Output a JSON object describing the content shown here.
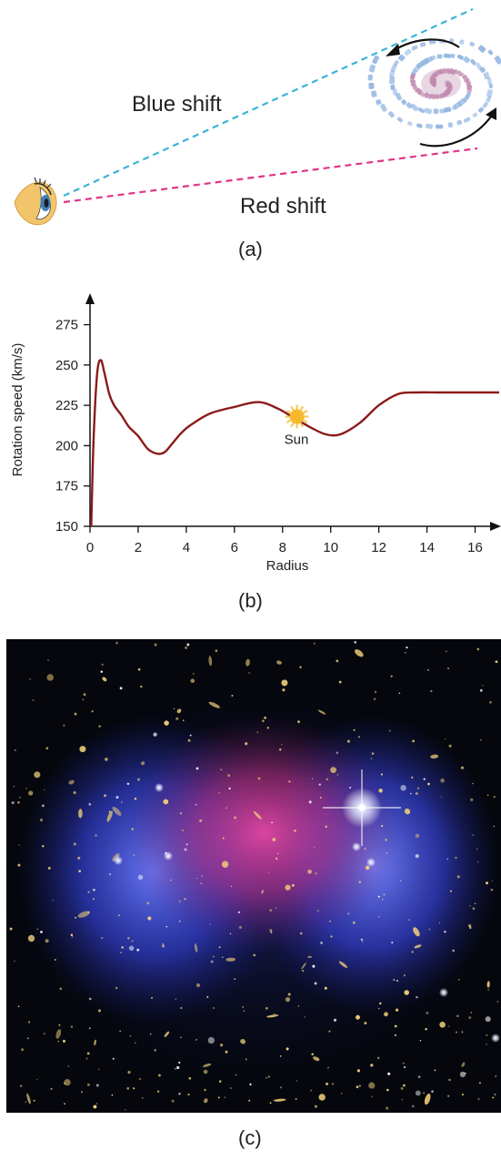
{
  "panel_a": {
    "blue_shift_label": "Blue shift",
    "red_shift_label": "Red shift",
    "caption": "(a)",
    "colors": {
      "blue_line": "#3ab4d6",
      "red_line": "#e0338a",
      "galaxy": "#8fb3e0",
      "galaxy_core": "#c08ab0"
    }
  },
  "panel_b": {
    "caption": "(b)",
    "sun_label": "Sun",
    "colors": {
      "curve": "#8b1a1a",
      "sun": "#f5b82a"
    }
  },
  "panel_c": {
    "caption": "(c)",
    "colors": {
      "background": "#05070d",
      "blue_glow": "#3a4bff",
      "pink_glow": "#e03a9a",
      "stars": "#f2d27a"
    }
  },
  "chart_data": {
    "type": "line",
    "xlabel": "Radius",
    "ylabel": "Rotation speed (km/s)",
    "xlim": [
      0,
      17
    ],
    "ylim": [
      150,
      290
    ],
    "xticks": [
      0,
      2,
      4,
      6,
      8,
      10,
      12,
      14,
      16
    ],
    "yticks": [
      150,
      175,
      200,
      225,
      250,
      275
    ],
    "grid": false,
    "x": [
      0.05,
      0.15,
      0.3,
      0.45,
      0.6,
      0.8,
      1.0,
      1.3,
      1.6,
      2.0,
      2.4,
      2.8,
      3.1,
      3.4,
      3.8,
      4.2,
      5.0,
      6.0,
      7.0,
      7.8,
      8.5,
      9.2,
      9.8,
      10.4,
      11.2,
      12.0,
      12.8,
      13.5,
      14.5,
      15.5,
      16.5,
      17.0
    ],
    "y": [
      150,
      205,
      245,
      253,
      245,
      232,
      225,
      219,
      212,
      206,
      198,
      195,
      196,
      201,
      208,
      213,
      220,
      224,
      227,
      223,
      217,
      211,
      207,
      207,
      214,
      225,
      232,
      233,
      233,
      233,
      233,
      233
    ],
    "annotations": [
      {
        "text": "Sun",
        "x": 8.6,
        "y": 218
      }
    ]
  }
}
